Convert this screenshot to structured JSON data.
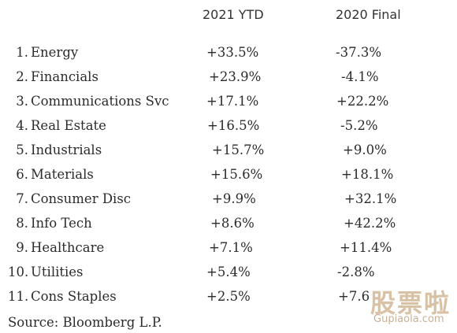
{
  "headers": {
    "ytd": "2021 YTD",
    "final": "2020 Final"
  },
  "rows": [
    {
      "rank": "1.",
      "sector": "Energy",
      "ytd": "+33.5%",
      "final": "-37.3%"
    },
    {
      "rank": "2.",
      "sector": "Financials",
      "ytd": "+23.9%",
      "final": "-4.1%"
    },
    {
      "rank": "3.",
      "sector": "Communications Svc",
      "ytd": "+17.1%",
      "final": "+22.2%"
    },
    {
      "rank": "4.",
      "sector": "Real Estate",
      "ytd": "+16.5%",
      "final": "-5.2%"
    },
    {
      "rank": "5.",
      "sector": "Industrials",
      "ytd": "+15.7%",
      "final": "+9.0%"
    },
    {
      "rank": "6.",
      "sector": "Materials",
      "ytd": "+15.6%",
      "final": "+18.1%"
    },
    {
      "rank": "7.",
      "sector": "Consumer Disc",
      "ytd": "+9.9%",
      "final": "+32.1%"
    },
    {
      "rank": "8.",
      "sector": "Info Tech",
      "ytd": "+8.6%",
      "final": "+42.2%"
    },
    {
      "rank": "9.",
      "sector": "Healthcare",
      "ytd": "+7.1%",
      "final": "+11.4%"
    },
    {
      "rank": "10.",
      "sector": "Utilities",
      "ytd": "+5.4%",
      "final": "-2.8%"
    },
    {
      "rank": "11.",
      "sector": "Cons Staples",
      "ytd": "+2.5%",
      "final": "+7.6"
    }
  ],
  "source": "Source: Bloomberg L.P.",
  "watermark": {
    "main": "股票啦",
    "sub": "Gupiaola.com"
  }
}
